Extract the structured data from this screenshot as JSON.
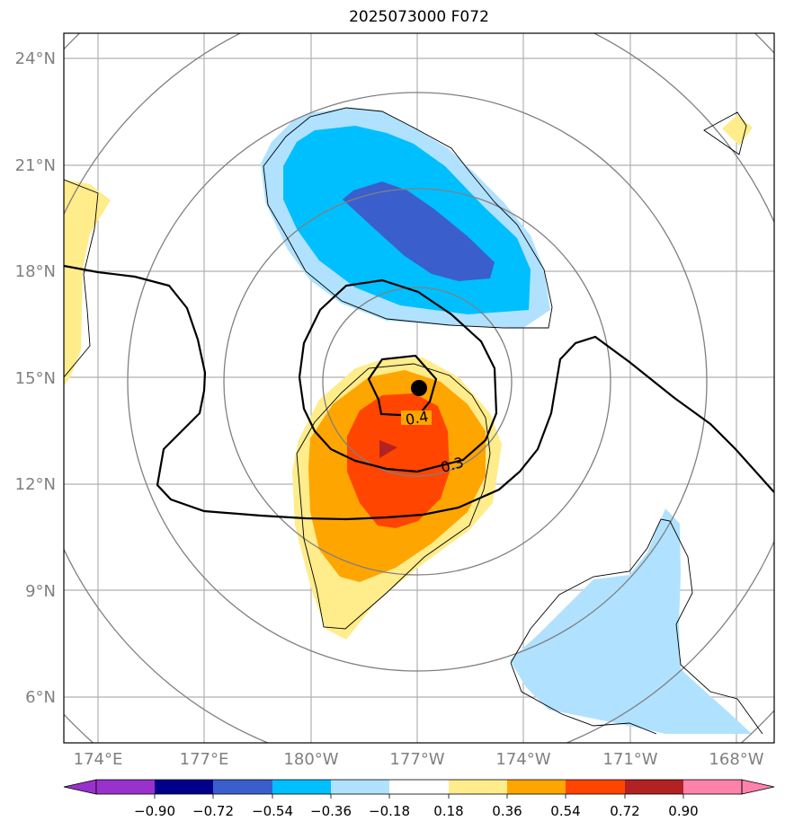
{
  "title": "2025073000 F072",
  "axes": {
    "lat_labels": [
      "24°N",
      "21°N",
      "18°N",
      "15°N",
      "12°N",
      "9°N",
      "6°N"
    ],
    "lon_labels": [
      "174°E",
      "177°E",
      "180°W",
      "177°W",
      "174°W",
      "171°W",
      "168°W"
    ]
  },
  "contour_labels": [
    "0.4",
    "0.3"
  ],
  "center_marker": "storm-center",
  "colorbar": {
    "tick_labels": [
      "−0.90",
      "−0.72",
      "−0.54",
      "−0.36",
      "−0.18",
      "0.18",
      "0.36",
      "0.54",
      "0.72",
      "0.90"
    ],
    "colors": [
      "#9932CC",
      "#00008B",
      "#3A5FCD",
      "#00BFFF",
      "#B0E2FF",
      "#FFFFFF",
      "#FFEC8B",
      "#FFA500",
      "#FF4500",
      "#B22222",
      "#FF82AB"
    ]
  },
  "colors": {
    "grid": "#b0b0b0",
    "rings": "#808080",
    "label_text": "#808080"
  }
}
